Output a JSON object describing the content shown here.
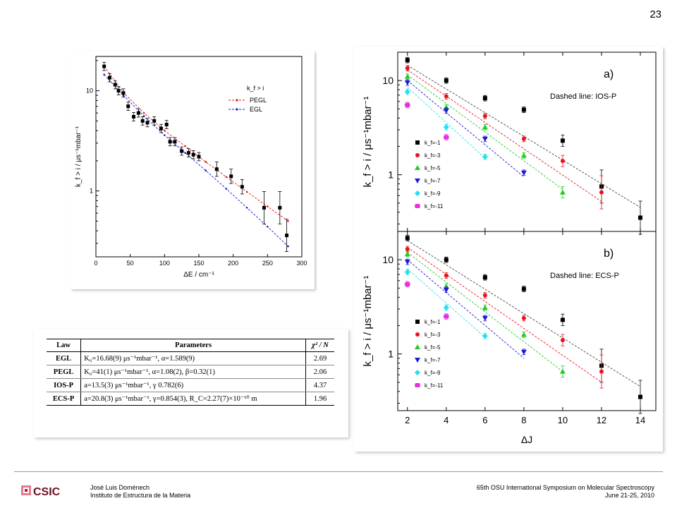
{
  "slide_number": "23",
  "footer": {
    "author": "José Luis Doménech",
    "institute": "Instituto de Estructura de la Materia",
    "conference": "65th OSU International Symposium on Molecular Spectroscopy",
    "dates": "June 21-25, 2010",
    "logo_text": "CSIC"
  },
  "colors": {
    "black": "#000000",
    "red": "#e8141d",
    "green": "#22cc22",
    "blue": "#1a1ad8",
    "cyan": "#22e0f0",
    "magenta": "#e830e0"
  },
  "table": {
    "headers": [
      "Law",
      "Parameters",
      "χ² / N"
    ],
    "rows": [
      {
        "law": "EGL",
        "params": "K₀=16.68(9) μs⁻¹mbar⁻¹, α=1.589(9)",
        "chi": "2.69"
      },
      {
        "law": "PEGL",
        "params": "K₀=41(1) μs⁻¹mbar⁻¹, α=1.08(2), β=0.32(1)",
        "chi": "2.06"
      },
      {
        "law": "IOS-P",
        "params": "a=13.5(3) μs⁻¹mbar⁻¹, γ 0.782(6)",
        "chi": "4.37"
      },
      {
        "law": "ECS-P",
        "params": "a=20.8(3) μs⁻¹mbar⁻¹, γ=0.854(3), R_C=2.27(7)×10⁻¹⁰ m",
        "chi": "1.96"
      }
    ]
  },
  "chart_data": [
    {
      "type": "scatter",
      "xlabel": "ΔE / cm⁻¹",
      "ylabel": "k_f > i / μs⁻¹mbar⁻¹",
      "xlim": [
        0,
        300
      ],
      "ylim": [
        0.22,
        22
      ],
      "yscale": "log",
      "xticks": [
        0,
        50,
        100,
        150,
        200,
        250,
        300
      ],
      "ytick_labels": [
        "10",
        "1"
      ],
      "legend": {
        "title": "k_f > i",
        "entries": [
          "PEGL",
          "EGL"
        ],
        "placement": "top-right"
      },
      "series": [
        {
          "name": "data",
          "color": "#000000",
          "x": [
            12,
            20,
            28,
            33,
            40,
            47,
            55,
            62,
            68,
            75,
            85,
            95,
            103,
            108,
            115,
            125,
            135,
            142,
            150,
            176,
            197,
            213,
            245,
            268,
            278
          ],
          "y": [
            17.5,
            13.5,
            11.5,
            10,
            9.5,
            7,
            5.5,
            6,
            5,
            4.8,
            5,
            4.2,
            4.6,
            3.1,
            3.1,
            2.5,
            2.4,
            2.3,
            2.2,
            1.65,
            1.4,
            1.1,
            0.68,
            0.68,
            0.36
          ]
        },
        {
          "name": "PEGL",
          "color": "#e8141d",
          "dashed": true,
          "x": [
            12,
            40,
            70,
            100,
            130,
            160,
            190,
            220,
            250,
            280
          ],
          "y": [
            17.5,
            9.6,
            6.0,
            4.0,
            2.8,
            1.95,
            1.38,
            0.98,
            0.7,
            0.5
          ]
        },
        {
          "name": "EGL",
          "color": "#1a1ad8",
          "dashed": true,
          "x": [
            12,
            40,
            70,
            100,
            130,
            160,
            190,
            220,
            250,
            280
          ],
          "y": [
            14.5,
            9.0,
            5.6,
            3.6,
            2.4,
            1.6,
            1.05,
            0.68,
            0.44,
            0.28
          ]
        }
      ]
    },
    {
      "type": "scatter",
      "label": "a)",
      "annotation": "Dashed line: IOS-P",
      "ylabel": "k_f > i / μs⁻¹mbar⁻¹",
      "ylim": [
        0.25,
        20
      ],
      "yscale": "log",
      "xlim": [
        1.5,
        14.8
      ],
      "ytick_labels": [
        "10",
        "1"
      ],
      "legend": {
        "entries": [
          "k_f=-1",
          "k_f=-3",
          "k_f=-5",
          "k_f=-7",
          "k_f=-9",
          "k_f=-11"
        ],
        "placement": "left"
      },
      "series": [
        {
          "name": "k_f=-1",
          "color": "#000000",
          "x": [
            2,
            4,
            6,
            8,
            10,
            12,
            14
          ],
          "y": [
            16.5,
            10,
            6.5,
            4.9,
            2.3,
            0.75,
            0.35
          ],
          "fit": [
            [
              2,
              14.5
            ],
            [
              14,
              0.45
            ]
          ]
        },
        {
          "name": "k_f=-3",
          "color": "#e8141d",
          "x": [
            2,
            4,
            6,
            8,
            10,
            12
          ],
          "y": [
            13.5,
            6.8,
            4.2,
            2.4,
            1.4,
            0.65
          ],
          "fit": [
            [
              2,
              13
            ],
            [
              12,
              0.52
            ]
          ]
        },
        {
          "name": "k_f=-5",
          "color": "#22cc22",
          "x": [
            2,
            4,
            6,
            8,
            10
          ],
          "y": [
            11,
            5.2,
            3.2,
            1.6,
            0.65
          ],
          "fit": [
            [
              2,
              11.5
            ],
            [
              10,
              0.7
            ]
          ]
        },
        {
          "name": "k_f=-7",
          "color": "#1a1ad8",
          "x": [
            2,
            4,
            6,
            8
          ],
          "y": [
            9.5,
            4.8,
            2.4,
            1.05
          ],
          "fit": [
            [
              2,
              10
            ],
            [
              8,
              0.95
            ]
          ]
        },
        {
          "name": "k_f=-9",
          "color": "#22e0f0",
          "x": [
            2,
            4,
            6
          ],
          "y": [
            7.6,
            3.2,
            1.55
          ],
          "fit": [
            [
              2,
              8.5
            ],
            [
              6,
              1.5
            ]
          ]
        },
        {
          "name": "k_f=-11",
          "color": "#e830e0",
          "x": [
            2,
            4
          ],
          "y": [
            5.5,
            2.5
          ],
          "fit": null
        }
      ]
    },
    {
      "type": "scatter",
      "label": "b)",
      "annotation": "Dashed line: ECS-P",
      "xlabel": "ΔJ",
      "ylabel": "k_f > i / μs⁻¹mbar⁻¹",
      "ylim": [
        0.25,
        20
      ],
      "yscale": "log",
      "xlim": [
        1.5,
        14.8
      ],
      "xticks": [
        2,
        4,
        6,
        8,
        10,
        12,
        14
      ],
      "ytick_labels": [
        "10",
        "1"
      ],
      "legend": {
        "entries": [
          "k_f=-1",
          "k_f=-3",
          "k_f=-5",
          "k_f=-7",
          "k_f=-9",
          "k_f=-11"
        ],
        "placement": "left"
      },
      "series": [
        {
          "name": "k_f=-1",
          "color": "#000000",
          "x": [
            2,
            4,
            6,
            8,
            10,
            12,
            14
          ],
          "y": [
            17,
            10,
            6.5,
            4.9,
            2.3,
            0.75,
            0.35
          ],
          "fit": [
            [
              2,
              16
            ],
            [
              14,
              0.45
            ]
          ]
        },
        {
          "name": "k_f=-3",
          "color": "#e8141d",
          "x": [
            2,
            4,
            6,
            8,
            10,
            12
          ],
          "y": [
            13,
            6.8,
            4.2,
            2.4,
            1.4,
            0.65
          ],
          "fit": [
            [
              2,
              13.5
            ],
            [
              12,
              0.5
            ]
          ]
        },
        {
          "name": "k_f=-5",
          "color": "#22cc22",
          "x": [
            2,
            4,
            6,
            8,
            10
          ],
          "y": [
            11.5,
            5.2,
            3.1,
            1.6,
            0.65
          ],
          "fit": [
            [
              2,
              12
            ],
            [
              10,
              0.65
            ]
          ]
        },
        {
          "name": "k_f=-7",
          "color": "#1a1ad8",
          "x": [
            2,
            4,
            6,
            8
          ],
          "y": [
            9.5,
            4.8,
            2.4,
            1.05
          ],
          "fit": [
            [
              2,
              10
            ],
            [
              8,
              0.9
            ]
          ]
        },
        {
          "name": "k_f=-9",
          "color": "#22e0f0",
          "x": [
            2,
            4,
            6
          ],
          "y": [
            7.4,
            3.1,
            1.55
          ],
          "fit": [
            [
              2,
              8
            ],
            [
              6,
              1.5
            ]
          ]
        },
        {
          "name": "k_f=-11",
          "color": "#e830e0",
          "x": [
            2,
            4
          ],
          "y": [
            5.5,
            2.5
          ],
          "fit": null
        }
      ]
    }
  ]
}
